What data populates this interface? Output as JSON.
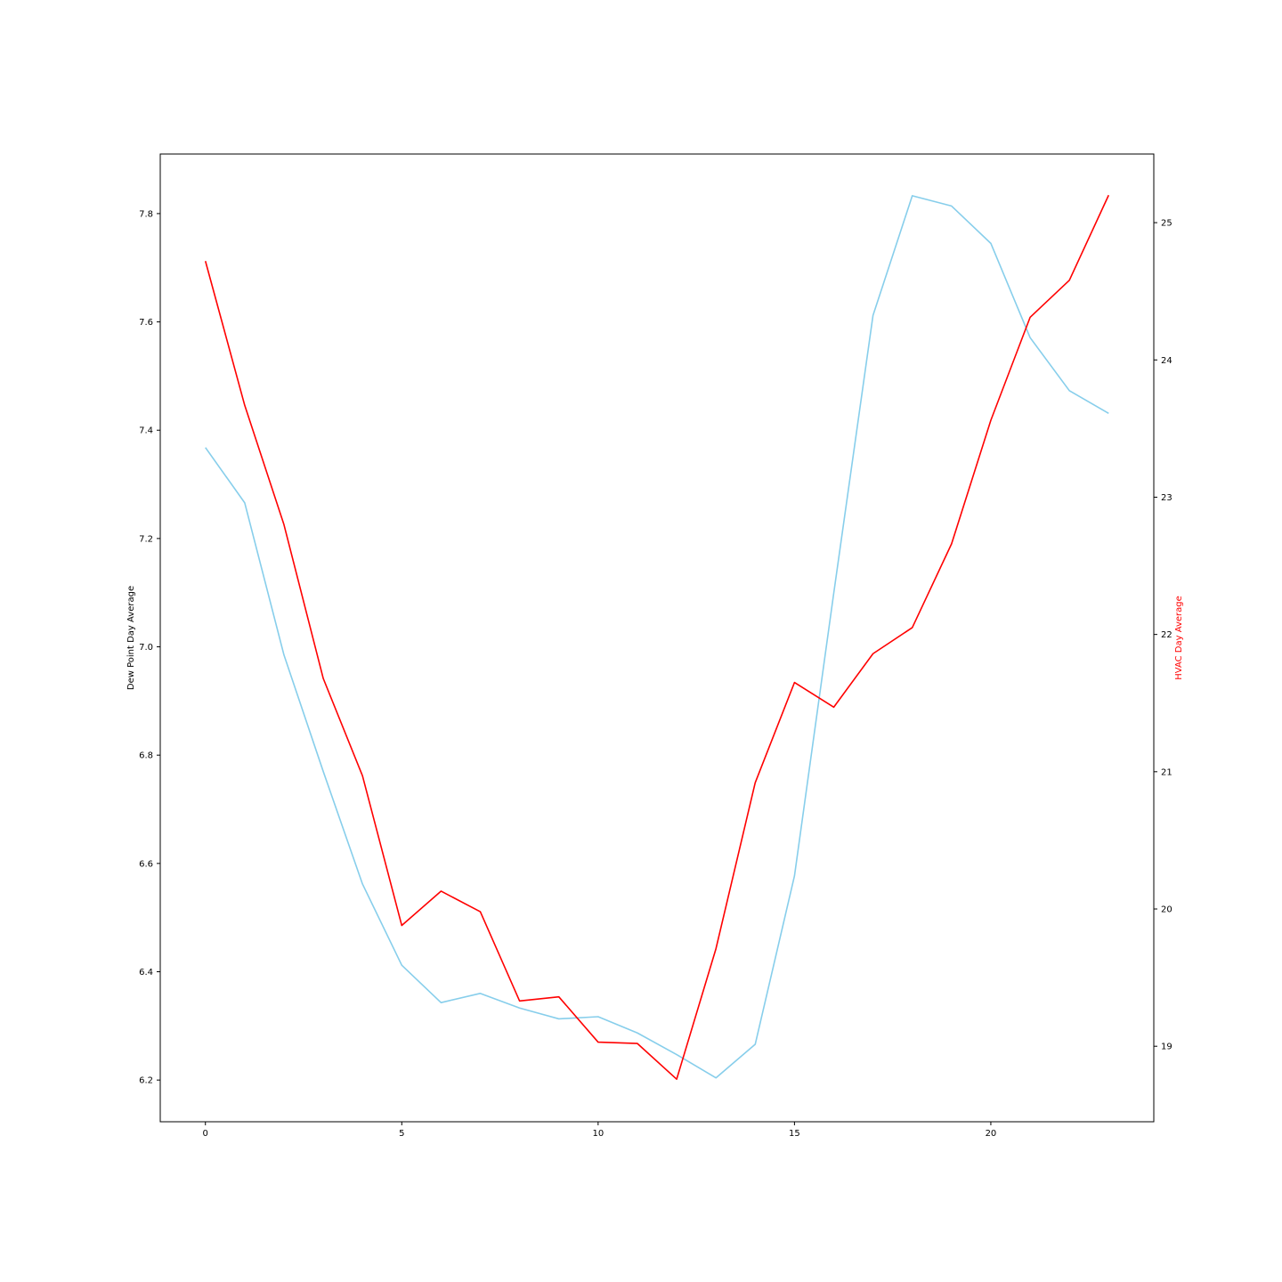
{
  "chart_data": {
    "type": "line",
    "title": "",
    "x": [
      0,
      1,
      2,
      3,
      4,
      5,
      6,
      7,
      8,
      9,
      10,
      11,
      12,
      13,
      14,
      15,
      16,
      17,
      18,
      19,
      20,
      21,
      22,
      23
    ],
    "xlim": [
      -1.15,
      24.15
    ],
    "xticks": [
      0,
      5,
      10,
      15,
      20
    ],
    "xlabel": "",
    "grid": false,
    "legend": "none",
    "y_left": {
      "label": "Dew Point Day Average",
      "label_color": "#000000",
      "ylim": [
        6.123,
        7.91
      ],
      "ticks": [
        6.2,
        6.4,
        6.6,
        6.8,
        7.0,
        7.2,
        7.4,
        7.6,
        7.8
      ]
    },
    "y_right": {
      "label": "HVAC Day Average",
      "label_color": "#ff0000",
      "ylim": [
        18.45,
        25.5
      ],
      "ticks": [
        19,
        20,
        21,
        22,
        23,
        24,
        25
      ]
    },
    "series": [
      {
        "axis": "left",
        "color": "#87ceeb",
        "values": [
          7.368,
          7.266,
          6.985,
          6.77,
          6.562,
          6.412,
          6.343,
          6.36,
          6.333,
          6.313,
          6.317,
          6.287,
          6.247,
          6.204,
          6.266,
          6.577,
          7.099,
          7.612,
          7.833,
          7.814,
          7.745,
          7.571,
          7.473,
          7.431
        ]
      },
      {
        "axis": "right",
        "color": "#ff0000",
        "values": [
          24.72,
          23.67,
          22.8,
          21.68,
          20.97,
          19.88,
          20.13,
          19.98,
          19.33,
          19.36,
          19.03,
          19.02,
          18.76,
          19.71,
          20.92,
          21.65,
          21.47,
          21.86,
          22.05,
          22.66,
          23.56,
          24.31,
          24.58,
          25.2
        ]
      }
    ]
  }
}
